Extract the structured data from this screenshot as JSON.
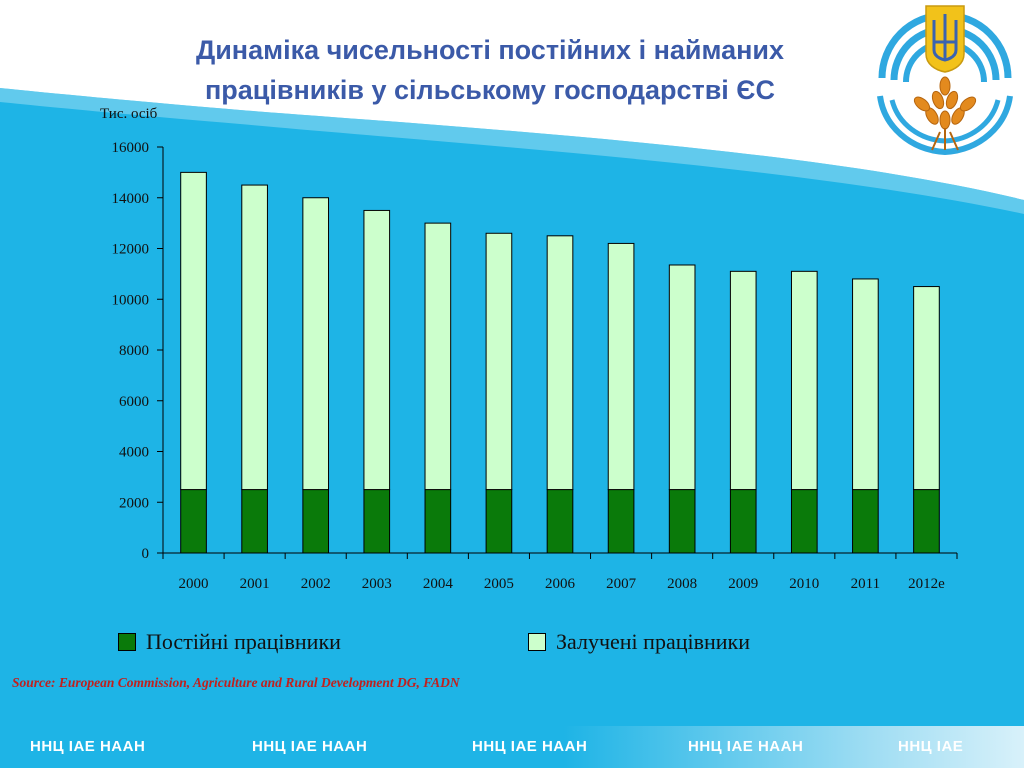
{
  "slide": {
    "title_line1": "Динаміка чисельності постійних і найманих",
    "title_line2": "працівників у сільському господарстві ЄС",
    "source": "Source: European Commission, Agriculture and Rural Development DG, FADN",
    "footer_items": [
      "ННЦ ІАЕ  НААН",
      "ННЦ ІАЕ  НААН",
      "ННЦ ІАЕ  НААН",
      "ННЦ ІАЕ  НААН",
      "ННЦ ІАЕ"
    ],
    "colors": {
      "title": "#3B5AA8",
      "sky": "#1EB4E6",
      "source": "#C0201E"
    },
    "logo_icon": "trident-wheat-emblem-icon"
  },
  "chart_data": {
    "type": "bar",
    "stacked": true,
    "unit_label": "Тис. осіб",
    "categories": [
      "2000",
      "2001",
      "2002",
      "2003",
      "2004",
      "2005",
      "2006",
      "2007",
      "2008",
      "2009",
      "2010",
      "2011",
      "2012е"
    ],
    "series": [
      {
        "name": "Постійні працівники",
        "color": "#0A7A0A",
        "values": [
          2500,
          2500,
          2500,
          2500,
          2500,
          2500,
          2500,
          2500,
          2500,
          2500,
          2500,
          2500,
          2500
        ]
      },
      {
        "name": "Залучені працівники",
        "color": "#CCFFCC",
        "values": [
          12500,
          12000,
          11500,
          11000,
          10500,
          10100,
          10000,
          9700,
          8850,
          8600,
          8600,
          8300,
          8000
        ]
      }
    ],
    "ylim": [
      0,
      16000
    ],
    "yticks": [
      0,
      2000,
      4000,
      6000,
      8000,
      10000,
      12000,
      14000,
      16000
    ],
    "grid": false,
    "legend_position": "bottom"
  }
}
